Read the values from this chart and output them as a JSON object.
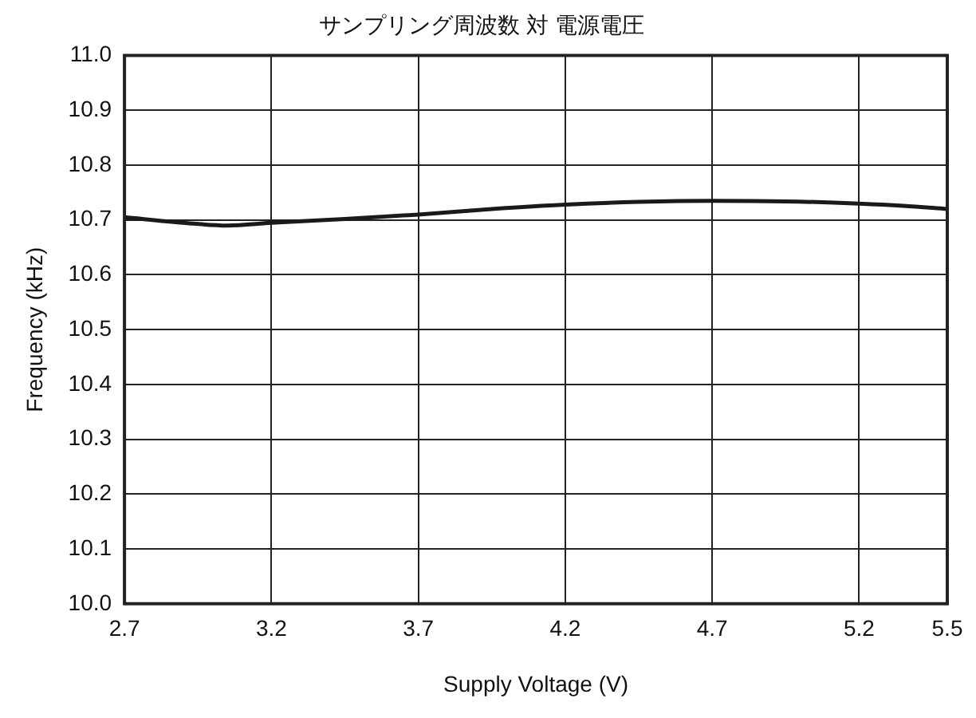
{
  "chart_data": {
    "type": "line",
    "title": "サンプリング周波数 対 電源電圧",
    "xlabel": "Supply Voltage (V)",
    "ylabel": "Frequency (kHz)",
    "x": [
      2.7,
      2.9,
      3.05,
      3.2,
      3.45,
      3.7,
      3.95,
      4.2,
      4.45,
      4.7,
      4.95,
      5.2,
      5.35,
      5.5
    ],
    "series": [
      {
        "color": "#1a1a1a",
        "values": [
          10.705,
          10.695,
          10.69,
          10.695,
          10.702,
          10.71,
          10.72,
          10.728,
          10.733,
          10.735,
          10.734,
          10.73,
          10.726,
          10.72
        ]
      }
    ],
    "xlim": [
      2.7,
      5.5
    ],
    "xticks": [
      2.7,
      3.2,
      3.7,
      4.2,
      4.7,
      5.2,
      5.5
    ],
    "ylim": [
      10.0,
      11.0
    ],
    "yticks": [
      {
        "value": 10.0,
        "label": "10.0"
      },
      10.1,
      10.2,
      10.3,
      10.4,
      10.5,
      10.6,
      10.7,
      10.8,
      10.9,
      {
        "value": 11.0,
        "label": "11.0"
      }
    ],
    "grid": true,
    "legend": false,
    "marker": "none",
    "line_style": "solid"
  }
}
